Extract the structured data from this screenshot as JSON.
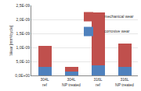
{
  "chart_data": {
    "type": "bar",
    "stacked": true,
    "categories": [
      "304L ref",
      "304L NP treated",
      "316L ref",
      "316L NP treated"
    ],
    "series": [
      {
        "name": "corrosive wear",
        "color": "#4f81bd",
        "values": [
          3e-10,
          1.5e-10,
          3.5e-10,
          3e-10
        ]
      },
      {
        "name": "mechanical wear",
        "color": "#c0504d",
        "values": [
          7.5e-10,
          1.5e-10,
          1.9e-09,
          8.5e-10
        ]
      }
    ],
    "y_label": "Wear [mm³/cycle]",
    "ylim": [
      0,
      2.5e-09
    ],
    "yticks": [
      {
        "value": 0,
        "label": "0,0E+00"
      },
      {
        "value": 5e-10,
        "label": "5,0E-10"
      },
      {
        "value": 1e-09,
        "label": "1,0E-09"
      },
      {
        "value": 1.5e-09,
        "label": "1,5E-09"
      },
      {
        "value": 2e-09,
        "label": "2,0E-09"
      },
      {
        "value": 2.5e-09,
        "label": "2,5E-09"
      }
    ],
    "grid": true,
    "legend": "top-right"
  }
}
